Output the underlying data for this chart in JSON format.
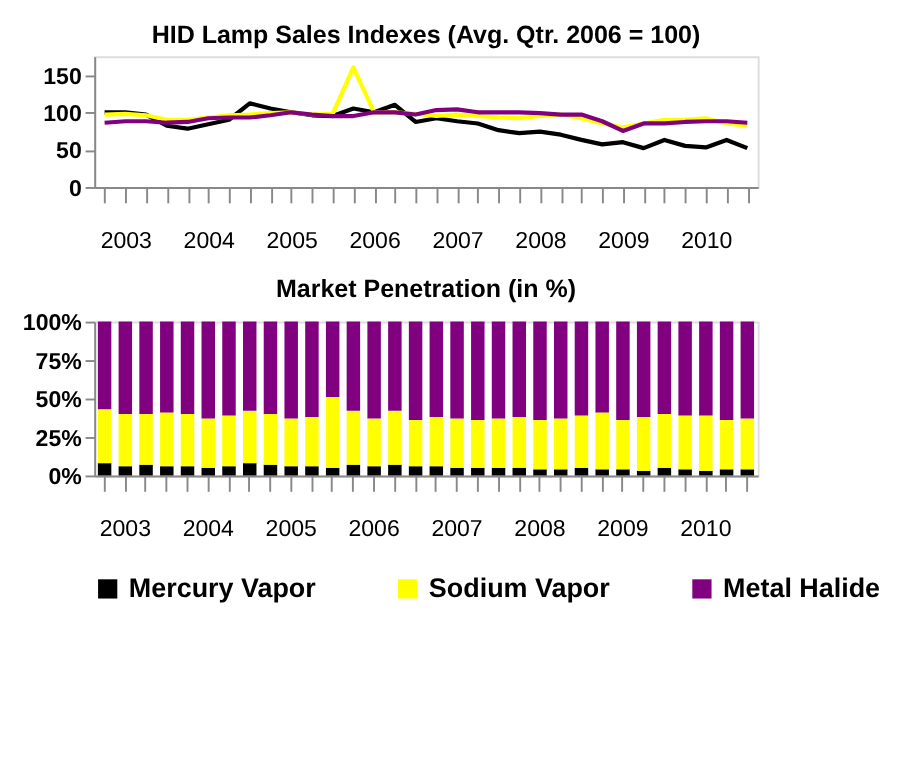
{
  "chart_data": [
    {
      "type": "line",
      "title": "HID Lamp Sales Indexes (Avg. Qtr. 2006 = 100)",
      "categories": [
        null,
        "2003",
        null,
        null,
        null,
        "2004",
        null,
        null,
        null,
        "2005",
        null,
        null,
        null,
        "2006",
        null,
        null,
        null,
        "2007",
        null,
        null,
        null,
        "2008",
        null,
        null,
        null,
        "2009",
        null,
        null,
        null,
        "2010",
        null,
        null
      ],
      "ylim": [
        0,
        175
      ],
      "yticks": [
        0,
        50,
        100,
        150
      ],
      "legend": "bottom",
      "line_style": "solid",
      "marker": "none",
      "series": [
        {
          "name": "Mercury Vapor",
          "color": "#000000",
          "values": [
            100,
            100,
            97,
            82,
            78,
            84,
            90,
            112,
            105,
            100,
            96,
            95,
            105,
            100,
            110,
            87,
            92,
            88,
            85,
            76,
            72,
            74,
            70,
            63,
            57,
            60,
            52,
            63,
            55,
            53,
            63,
            52
          ]
        },
        {
          "name": "Sodium Vapor",
          "color": "#ffff00",
          "values": [
            97,
            98,
            96,
            90,
            90,
            93,
            96,
            97,
            99,
            100,
            97,
            98,
            160,
            100,
            100,
            98,
            95,
            97,
            95,
            93,
            92,
            95,
            97,
            92,
            85,
            80,
            85,
            90,
            90,
            92,
            85,
            82
          ]
        },
        {
          "name": "Metal Halide",
          "color": "#800080",
          "values": [
            86,
            88,
            88,
            86,
            87,
            92,
            93,
            93,
            96,
            100,
            97,
            95,
            95,
            100,
            100,
            97,
            103,
            104,
            100,
            100,
            100,
            99,
            97,
            97,
            88,
            75,
            85,
            85,
            87,
            88,
            88,
            86
          ]
        }
      ]
    },
    {
      "type": "bar",
      "stacked": true,
      "title": "Market Penetration (in %)",
      "categories": [
        null,
        "2003",
        null,
        null,
        null,
        "2004",
        null,
        null,
        null,
        "2005",
        null,
        null,
        null,
        "2006",
        null,
        null,
        null,
        "2007",
        null,
        null,
        null,
        "2008",
        null,
        null,
        null,
        "2009",
        null,
        null,
        null,
        "2010",
        null,
        null
      ],
      "ylim": [
        0,
        100
      ],
      "yticks": [
        {
          "value": 0,
          "label": "0%"
        },
        {
          "value": 25,
          "label": "25%"
        },
        {
          "value": 50,
          "label": "50%"
        },
        {
          "value": 75,
          "label": "75%"
        },
        {
          "value": 100,
          "label": "100%"
        }
      ],
      "legend": "bottom",
      "series": [
        {
          "name": "Mercury Vapor",
          "color": "#000000",
          "values": [
            8,
            6,
            7,
            6,
            6,
            5,
            6,
            8,
            7,
            6,
            6,
            5,
            7,
            6,
            7,
            6,
            6,
            5,
            5,
            5,
            5,
            4,
            4,
            5,
            4,
            4,
            3,
            5,
            4,
            3,
            4,
            4
          ]
        },
        {
          "name": "Sodium Vapor",
          "color": "#ffff00",
          "values": [
            35,
            34,
            33,
            35,
            34,
            32,
            33,
            34,
            33,
            31,
            32,
            46,
            35,
            31,
            35,
            30,
            32,
            32,
            31,
            32,
            33,
            32,
            33,
            34,
            37,
            32,
            35,
            35,
            35,
            36,
            32,
            33
          ]
        },
        {
          "name": "Metal Halide",
          "color": "#800080",
          "values": [
            57,
            60,
            60,
            59,
            60,
            63,
            61,
            58,
            60,
            63,
            62,
            49,
            58,
            63,
            58,
            64,
            62,
            63,
            64,
            63,
            62,
            64,
            63,
            61,
            59,
            64,
            62,
            60,
            61,
            61,
            64,
            63
          ]
        }
      ]
    }
  ]
}
